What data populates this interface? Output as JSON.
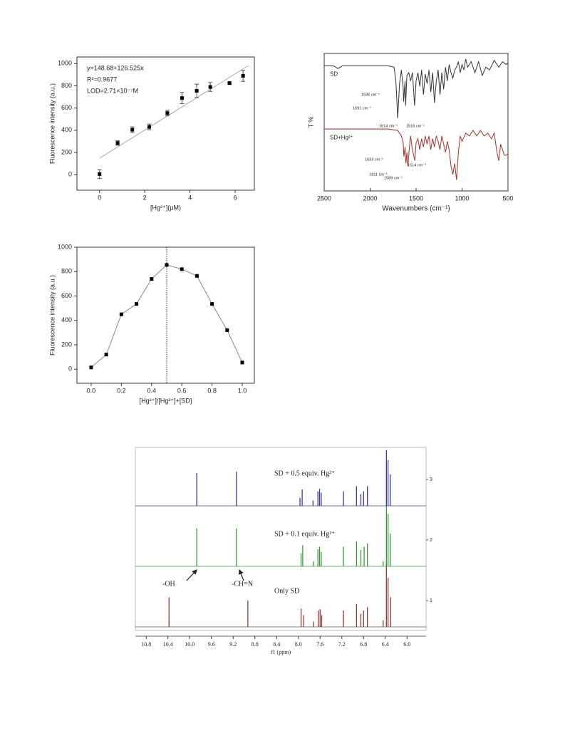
{
  "chart_data": [
    {
      "type": "scatter",
      "xlabel": "[Hg²⁺](μM)",
      "ylabel": "Fluorescence intensity (a.u.)",
      "x": [
        0,
        0.8,
        1.45,
        2.2,
        3.0,
        3.65,
        4.3,
        4.9,
        5.75,
        6.35
      ],
      "values": [
        5,
        285,
        405,
        430,
        555,
        690,
        755,
        790,
        825,
        890
      ],
      "errors": [
        40,
        20,
        25,
        25,
        25,
        50,
        60,
        40,
        10,
        50
      ],
      "color": "#000000",
      "fit": {
        "intercept": 148.68,
        "slope": 126.525,
        "x": [
          0,
          6.6
        ],
        "color": "#aaaaaa"
      },
      "annotations": [
        "y=148.68+126.525x",
        "R²=0.9677",
        "LOD=2.71×10⁻⁷M"
      ],
      "xlim": [
        -1,
        6.85
      ],
      "ylim": [
        -140,
        1060
      ],
      "xticks": [
        0,
        2,
        4,
        6
      ],
      "yticks": [
        0,
        200,
        400,
        600,
        800,
        1000
      ]
    },
    {
      "type": "line",
      "xlabel": "Wavenumbers (cm⁻¹)",
      "ylabel": "T %",
      "xlim": [
        2500,
        500
      ],
      "ylim": [
        0,
        100
      ],
      "xticks": [
        2500,
        2000,
        1500,
        1000,
        500
      ],
      "series": [
        {
          "name": "SD",
          "color": "#333333",
          "x": [
            2500,
            2400,
            2350,
            2300,
            1800,
            1740,
            1720,
            1700,
            1680,
            1660,
            1640,
            1636,
            1620,
            1614,
            1600,
            1580,
            1560,
            1540,
            1516,
            1500,
            1480,
            1460,
            1440,
            1420,
            1400,
            1380,
            1360,
            1340,
            1320,
            1300,
            1280,
            1260,
            1240,
            1220,
            1200,
            1180,
            1160,
            1140,
            1120,
            1100,
            1080,
            1060,
            1040,
            1020,
            1000,
            980,
            960,
            940,
            900,
            860,
            820,
            780,
            740,
            700,
            650,
            600,
            560,
            520,
            500
          ],
          "values": [
            91,
            91,
            89,
            91,
            91,
            90,
            80,
            53,
            78,
            88,
            75,
            65,
            80,
            62,
            84,
            86,
            80,
            86,
            62,
            80,
            86,
            76,
            88,
            70,
            85,
            78,
            88,
            72,
            86,
            64,
            80,
            88,
            70,
            86,
            74,
            90,
            80,
            92,
            86,
            82,
            88,
            90,
            94,
            86,
            92,
            88,
            96,
            90,
            94,
            86,
            94,
            84,
            90,
            88,
            95,
            90,
            94,
            92,
            93
          ]
        },
        {
          "name": "SD+Hg²⁺",
          "color": "#a0302c",
          "x": [
            2500,
            1800,
            1700,
            1680,
            1660,
            1640,
            1633,
            1620,
            1611,
            1600,
            1589,
            1575,
            1560,
            1540,
            1514,
            1500,
            1480,
            1460,
            1440,
            1420,
            1400,
            1380,
            1360,
            1340,
            1320,
            1300,
            1280,
            1260,
            1240,
            1220,
            1200,
            1180,
            1160,
            1140,
            1120,
            1100,
            1080,
            1060,
            1040,
            1020,
            1000,
            960,
            920,
            880,
            840,
            800,
            760,
            720,
            680,
            650,
            620,
            600,
            580,
            560,
            540,
            520,
            500
          ],
          "values": [
            45,
            45,
            44,
            42,
            40,
            35,
            25,
            32,
            20,
            28,
            18,
            30,
            40,
            30,
            22,
            35,
            38,
            30,
            38,
            32,
            40,
            34,
            40,
            30,
            38,
            32,
            40,
            36,
            30,
            40,
            34,
            28,
            36,
            30,
            18,
            12,
            20,
            8,
            28,
            40,
            36,
            42,
            40,
            44,
            40,
            44,
            40,
            42,
            38,
            42,
            28,
            22,
            34,
            30,
            26,
            26,
            27
          ]
        }
      ],
      "annotations": [
        "1636 cm⁻¹",
        "1691 cm⁻¹",
        "1614 cm⁻¹",
        "1516 cm⁻¹",
        "1633 cm⁻¹",
        "1611 cm⁻¹",
        "1589 cm⁻¹",
        "1514 cm⁻¹"
      ]
    },
    {
      "type": "line",
      "xlabel": "[Hg²⁺]/[Hg²⁺]+[SD]",
      "ylabel": "Fluorescence intensity (a.u.)",
      "markers": true,
      "vline": 0.5,
      "series": [
        {
          "color": "#888888",
          "x": [
            0,
            0.1,
            0.2,
            0.3,
            0.4,
            0.5,
            0.6,
            0.7,
            0.8,
            0.9,
            1.0
          ],
          "values": [
            15,
            120,
            450,
            535,
            740,
            855,
            820,
            765,
            535,
            320,
            55
          ]
        }
      ],
      "xlim": [
        -0.094,
        1.08
      ],
      "ylim": [
        -115,
        1000
      ],
      "xticks": [
        {
          "value": 0,
          "label": "0.0"
        },
        0.2,
        0.4,
        0.6,
        0.8,
        {
          "value": 1,
          "label": "1.0"
        }
      ],
      "yticks": [
        0,
        200,
        400,
        600,
        800,
        1000
      ]
    },
    {
      "type": "nmr",
      "xlabel": "f1 (ppm)",
      "xlim": [
        11.0,
        5.65
      ],
      "ylim": [
        0,
        100
      ],
      "xticks": [
        10.8,
        10.4,
        {
          "value": 10,
          "label": "10.0"
        },
        9.6,
        9.2,
        8.8,
        8.4,
        {
          "value": 8,
          "label": "8.0"
        },
        7.6,
        7.2,
        6.8,
        6.4,
        {
          "value": 6,
          "label": "6.0"
        }
      ],
      "series": [
        {
          "name": "1",
          "label": "Only SD",
          "color": "#8b3a3a",
          "x": [
            10.38,
            8.93,
            7.95,
            7.9,
            7.72,
            7.63,
            7.6,
            7.57,
            7.17,
            6.93,
            6.85,
            6.8,
            6.73,
            6.44,
            6.38,
            6.35,
            6.3
          ],
          "values": [
            45,
            40,
            28,
            18,
            8,
            25,
            27,
            18,
            25,
            35,
            20,
            25,
            30,
            10,
            100,
            75,
            45
          ]
        },
        {
          "name": "2",
          "label": "SD + 0.1 equiv. Hg²⁺",
          "color": "#3a9a3a",
          "x": [
            9.87,
            9.14,
            7.95,
            7.92,
            7.72,
            7.64,
            7.61,
            7.58,
            7.17,
            6.93,
            6.85,
            6.79,
            6.73,
            6.44,
            6.38,
            6.35,
            6.31
          ],
          "values": [
            58,
            58,
            20,
            32,
            8,
            26,
            30,
            22,
            30,
            38,
            25,
            30,
            35,
            8,
            95,
            80,
            50
          ]
        },
        {
          "name": "3",
          "label": "SD + 0.5 equiv. Hg²⁺",
          "color": "#3a3a9a",
          "x": [
            9.87,
            9.14,
            7.97,
            7.93,
            7.73,
            7.64,
            7.61,
            7.58,
            7.17,
            6.93,
            6.85,
            6.8,
            6.73,
            6.38,
            6.35,
            6.31
          ],
          "values": [
            50,
            52,
            12,
            25,
            8,
            22,
            26,
            20,
            22,
            30,
            18,
            22,
            30,
            85,
            70,
            48
          ]
        }
      ],
      "annotations": [
        "-OH",
        "-CH=N"
      ]
    }
  ]
}
